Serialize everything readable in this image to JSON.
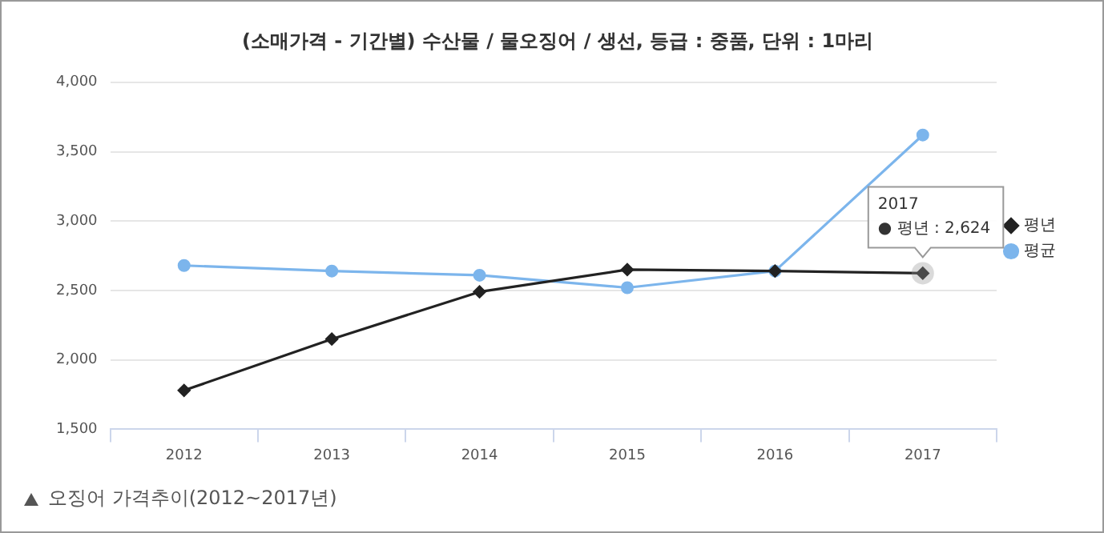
{
  "chart_data": {
    "type": "line",
    "title": "(소매가격 - 기간별) 수산물 / 물오징어 / 생선, 등급 : 중품, 단위 : 1마리",
    "categories": [
      "2012",
      "2013",
      "2014",
      "2015",
      "2016",
      "2017"
    ],
    "series": [
      {
        "name": "평균",
        "color": "#7cb5ec",
        "marker": "circle",
        "values": [
          2680,
          2640,
          2610,
          2520,
          2640,
          3620
        ]
      },
      {
        "name": "평년",
        "color": "#222222",
        "marker": "diamond",
        "values": [
          1780,
          2150,
          2490,
          2650,
          2640,
          2624
        ]
      }
    ],
    "ylim": [
      1500,
      4000
    ],
    "yticks": [
      {
        "value": 1500,
        "label": "1,500"
      },
      {
        "value": 2000,
        "label": "2,000"
      },
      {
        "value": 2500,
        "label": "2,500"
      },
      {
        "value": 3000,
        "label": "3,000"
      },
      {
        "value": 3500,
        "label": "3,500"
      },
      {
        "value": 4000,
        "label": "4,000"
      }
    ],
    "grid": "y",
    "legend": "right",
    "line_style": "solid",
    "annotations": [
      {
        "text": "2017\n● 평년 : 2,624",
        "x": "2017",
        "y": 2624
      },
      "오징어 가격추이(2012~2017년)"
    ]
  }
}
